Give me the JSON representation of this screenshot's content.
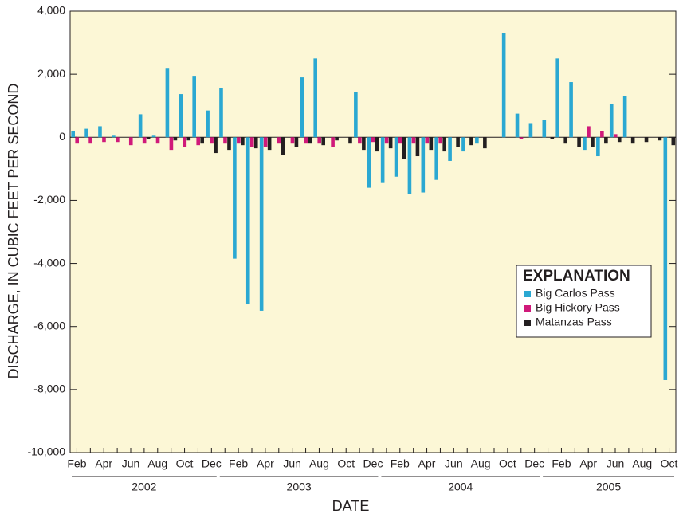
{
  "chart_data": {
    "type": "bar",
    "xlabel": "DATE",
    "ylabel": "DISCHARGE, IN CUBIC FEET PER SECOND",
    "categories": [
      "Feb",
      null,
      "Apr",
      null,
      "Jun",
      null,
      "Aug",
      null,
      "Oct",
      null,
      "Dec",
      null,
      "Feb",
      null,
      "Apr",
      null,
      "Jun",
      null,
      "Aug",
      null,
      "Oct",
      null,
      "Dec",
      null,
      "Feb",
      null,
      "Apr",
      null,
      "Jun",
      null,
      "Aug",
      null,
      "Oct",
      null,
      "Dec",
      null,
      "Feb",
      null,
      "Apr",
      null,
      "Jun",
      null,
      "Aug",
      null,
      "Oct"
    ],
    "groups": [
      {
        "label": "2002",
        "size": 11
      },
      {
        "label": "2003",
        "size": 12
      },
      {
        "label": "2004",
        "size": 12
      },
      {
        "label": "2005",
        "size": 10
      }
    ],
    "series": [
      {
        "name": "Big Carlos Pass",
        "color": "#2aa8d2",
        "values": [
          200,
          270,
          350,
          50,
          0,
          730,
          50,
          2200,
          1370,
          1950,
          850,
          1550,
          -3850,
          -5300,
          -5500,
          0,
          0,
          1900,
          2500,
          0,
          0,
          1430,
          -1600,
          -1450,
          -1250,
          -1800,
          -1750,
          -1350,
          -750,
          -450,
          -200,
          0,
          3300,
          750,
          450,
          550,
          2500,
          1750,
          -400,
          -600,
          1050,
          1300,
          0,
          0,
          -7700
        ]
      },
      {
        "name": "Big Hickory Pass",
        "color": "#d0197a",
        "values": [
          -200,
          -200,
          -150,
          -150,
          -250,
          -200,
          -200,
          -400,
          -300,
          -250,
          -200,
          -200,
          -200,
          -300,
          -300,
          -200,
          -200,
          -200,
          -200,
          -300,
          0,
          -200,
          -150,
          -200,
          -200,
          -200,
          -200,
          -200,
          0,
          0,
          0,
          0,
          0,
          -50,
          0,
          0,
          0,
          0,
          350,
          200,
          100,
          0,
          0,
          0,
          0
        ]
      },
      {
        "name": "Matanzas Pass",
        "color": "#231f20",
        "values": [
          0,
          0,
          0,
          0,
          0,
          -50,
          0,
          -100,
          -100,
          -200,
          -500,
          -400,
          -250,
          -350,
          -400,
          -550,
          -300,
          -200,
          -250,
          -100,
          -200,
          -400,
          -450,
          -350,
          -700,
          -600,
          -400,
          -450,
          -300,
          -250,
          -350,
          0,
          0,
          0,
          0,
          -50,
          -200,
          -300,
          -300,
          -200,
          -150,
          -200,
          -150,
          -100,
          -250
        ]
      }
    ],
    "ylim": [
      -10000,
      4000
    ],
    "yticks": [
      {
        "value": -10000,
        "label": "-10,000"
      },
      {
        "value": -8000,
        "label": "-8,000"
      },
      {
        "value": -6000,
        "label": "-6,000"
      },
      {
        "value": -4000,
        "label": "-4,000"
      },
      {
        "value": -2000,
        "label": "-2,000"
      },
      0,
      {
        "value": 2000,
        "label": "2,000"
      },
      {
        "value": 4000,
        "label": "4,000"
      }
    ],
    "legend": {
      "title": "EXPLANATION",
      "position": "right"
    }
  }
}
